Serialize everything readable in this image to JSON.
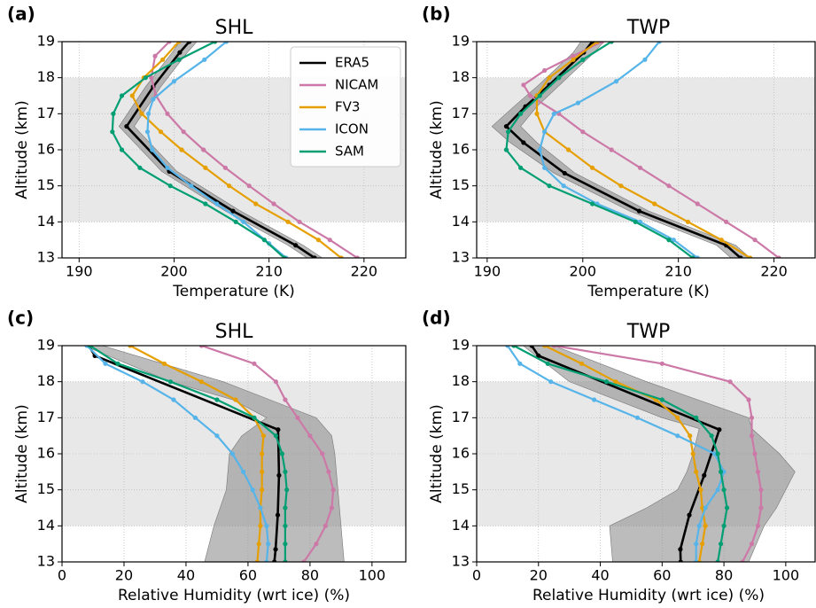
{
  "chart_data": [
    {
      "type": "line",
      "label": "(a)",
      "title": "SHL",
      "x_label": "Temperature (K)",
      "y_label": "Altitude (km)",
      "xlim": [
        188.2,
        224.4
      ],
      "xticks": [
        190,
        200,
        210,
        220
      ],
      "ylim": [
        13,
        19
      ],
      "yticks": [
        13,
        14,
        15,
        16,
        17,
        18,
        19
      ],
      "grid": true,
      "span": [
        14,
        18
      ],
      "legend": "upper right",
      "band": {
        "color": "#8c8c8c",
        "y": [
          13,
          13.35,
          14.3,
          15.4,
          16.65,
          17.75,
          18.7,
          19
        ],
        "lower": [
          214,
          212,
          205.4,
          198.7,
          194.2,
          197,
          199.8,
          200.6
        ],
        "upper": [
          215.6,
          213.6,
          207,
          200.3,
          195.8,
          198.6,
          201.4,
          202.4
        ]
      },
      "series": [
        {
          "name": "ERA5",
          "color": "#000000",
          "y": [
            13,
            13.35,
            14.3,
            15.4,
            16.65,
            17.75,
            18.7,
            19
          ],
          "x": [
            214.8,
            212.8,
            206.2,
            199.5,
            195,
            197.8,
            200.6,
            201.6
          ]
        },
        {
          "name": "NICAM",
          "color": "#cc79a7",
          "y": [
            13,
            13.5,
            14,
            14.5,
            15,
            15.5,
            16,
            16.5,
            17,
            17.5,
            18,
            18.6,
            19
          ],
          "x": [
            219.3,
            216.4,
            213.2,
            210.5,
            207.9,
            205.4,
            203.1,
            201,
            199.3,
            198.1,
            197.6,
            198,
            199.5
          ]
        },
        {
          "name": "FV3",
          "color": "#e69f00",
          "y": [
            13,
            13.5,
            14,
            14.5,
            15,
            15.5,
            16,
            16.5,
            17,
            17.5,
            18,
            18.5,
            19
          ],
          "x": [
            217.6,
            215.2,
            212,
            208.6,
            205.8,
            203.3,
            200.8,
            198.6,
            196.6,
            195.6,
            196.8,
            198.8,
            200.5
          ]
        },
        {
          "name": "ICON",
          "color": "#56b4e9",
          "y": [
            13,
            13.4,
            14,
            14.5,
            15,
            15.5,
            16,
            16.5,
            17,
            17.4,
            17.9,
            18.5,
            19
          ],
          "x": [
            211.8,
            210,
            207.3,
            204.5,
            201.8,
            199.3,
            197.7,
            197.2,
            197.3,
            197.8,
            200,
            203.2,
            205.5
          ]
        },
        {
          "name": "SAM",
          "color": "#009e73",
          "y": [
            13,
            13.5,
            14,
            14.5,
            15,
            15.5,
            16,
            16.5,
            17,
            17.5,
            18,
            18.5,
            19
          ],
          "x": [
            211.6,
            209.5,
            206.5,
            203.3,
            199.6,
            196.4,
            194.5,
            193.5,
            193.6,
            194.5,
            197,
            200.5,
            204.3
          ]
        }
      ]
    },
    {
      "type": "line",
      "label": "(b)",
      "title": "TWP",
      "x_label": "Temperature (K)",
      "y_label": "Altitude (km)",
      "xlim": [
        188.9,
        224.3
      ],
      "xticks": [
        190,
        200,
        210,
        220
      ],
      "ylim": [
        13,
        19
      ],
      "yticks": [
        13,
        14,
        15,
        16,
        17,
        18,
        19
      ],
      "grid": true,
      "span": [
        14,
        18
      ],
      "band": {
        "color": "#8c8c8c",
        "y": [
          13,
          13.35,
          14.3,
          15.35,
          16.2,
          16.65,
          17.2,
          17.8,
          18.7,
          19
        ],
        "lower": [
          215.5,
          214,
          204.9,
          197,
          192.4,
          190.5,
          192.8,
          195.4,
          199,
          199.8
        ],
        "upper": [
          217.5,
          216,
          206.9,
          199.2,
          195.2,
          193.5,
          195.2,
          197.6,
          201.2,
          202.2
        ]
      },
      "series": [
        {
          "name": "ERA5",
          "color": "#000000",
          "y": [
            13,
            13.35,
            14.3,
            15.35,
            16.2,
            16.65,
            17.2,
            17.8,
            18.7,
            19
          ],
          "x": [
            216.5,
            215,
            205.9,
            198.1,
            193.8,
            192,
            194,
            196.5,
            200.1,
            201
          ]
        },
        {
          "name": "NICAM",
          "color": "#cc79a7",
          "y": [
            13,
            13.5,
            14,
            14.5,
            15,
            15.5,
            16,
            16.5,
            17,
            17.5,
            17.8,
            18.2,
            18.6,
            19
          ],
          "x": [
            220.5,
            218,
            215,
            212,
            209,
            206,
            203,
            200,
            197.5,
            194.5,
            193.8,
            196,
            199,
            202
          ]
        },
        {
          "name": "FV3",
          "color": "#e69f00",
          "y": [
            13,
            13.5,
            14,
            14.5,
            15,
            15.5,
            16,
            16.5,
            17,
            17.5,
            18,
            18.5,
            19
          ],
          "x": [
            217.5,
            214.5,
            211,
            207.5,
            204,
            201,
            198.5,
            196,
            195.2,
            195.2,
            196.5,
            199,
            201.5
          ]
        },
        {
          "name": "ICON",
          "color": "#56b4e9",
          "y": [
            13,
            13.5,
            14,
            14.5,
            15,
            15.5,
            16,
            16.5,
            17,
            17.3,
            17.9,
            18.5,
            19
          ],
          "x": [
            212,
            209.5,
            206,
            201.5,
            198,
            196,
            195.5,
            196,
            197,
            199.5,
            203.5,
            206.5,
            208
          ]
        },
        {
          "name": "SAM",
          "color": "#009e73",
          "y": [
            13,
            13.5,
            14,
            14.5,
            15,
            15.5,
            16,
            16.5,
            17,
            17.5,
            18,
            18.5,
            19
          ],
          "x": [
            211.5,
            209,
            205.5,
            201,
            196.5,
            193.5,
            192,
            192.2,
            193.5,
            195.5,
            197.5,
            200,
            203
          ]
        }
      ]
    },
    {
      "type": "line",
      "label": "(c)",
      "title": "SHL",
      "x_label": "Relative Humidity (wrt ice) (%)",
      "y_label": "Altitude (km)",
      "xlim": [
        0,
        110.9
      ],
      "xticks": [
        0,
        20,
        40,
        60,
        80,
        100
      ],
      "ylim": [
        13,
        19
      ],
      "yticks": [
        13,
        14,
        15,
        16,
        17,
        18,
        19
      ],
      "grid": true,
      "span": [
        14,
        18
      ],
      "band": {
        "color": "#8f8f8f",
        "y": [
          13,
          14,
          15,
          16,
          16.5,
          17,
          17.5,
          18,
          19
        ],
        "lower": [
          46,
          49,
          53,
          54,
          58,
          66,
          55,
          35,
          7
        ],
        "upper": [
          91,
          90,
          89,
          88,
          87,
          82,
          67,
          52,
          13
        ]
      },
      "series": [
        {
          "name": "ERA5",
          "color": "#000000",
          "y": [
            13,
            13.35,
            14.3,
            15.4,
            16.67,
            18.72,
            19
          ],
          "x": [
            68.5,
            68.9,
            69.6,
            70,
            69.7,
            10.6,
            8.6
          ]
        },
        {
          "name": "NICAM",
          "color": "#cc79a7",
          "y": [
            13,
            13.5,
            14,
            14.5,
            15,
            15.5,
            16,
            16.5,
            17,
            17.5,
            18,
            18.5,
            19
          ],
          "x": [
            78,
            82,
            85,
            87,
            87.5,
            86,
            84,
            80,
            76,
            72,
            69,
            62,
            45
          ]
        },
        {
          "name": "FV3",
          "color": "#e69f00",
          "y": [
            13,
            13.5,
            14,
            14.5,
            15,
            15.5,
            16,
            16.5,
            17,
            17.5,
            18,
            18.5,
            19
          ],
          "x": [
            63,
            63.5,
            64,
            64,
            64.5,
            64.5,
            64.5,
            65,
            62,
            56,
            45,
            33,
            22
          ]
        },
        {
          "name": "ICON",
          "color": "#56b4e9",
          "y": [
            13,
            13.5,
            14,
            14.5,
            15,
            15.5,
            16,
            16.5,
            17,
            17.5,
            18,
            18.5,
            19
          ],
          "x": [
            66,
            66.5,
            66,
            64,
            61.5,
            58.5,
            55,
            50,
            43,
            36,
            26,
            14,
            8
          ]
        },
        {
          "name": "SAM",
          "color": "#009e73",
          "y": [
            13,
            13.5,
            14,
            14.5,
            15,
            15.5,
            16,
            16.5,
            17,
            17.5,
            18,
            18.5,
            19
          ],
          "x": [
            72,
            72,
            72,
            72,
            72.5,
            72,
            71,
            69,
            62,
            50,
            35,
            18,
            9
          ]
        }
      ]
    },
    {
      "type": "line",
      "label": "(d)",
      "title": "TWP",
      "x_label": "Relative Humidity (wrt ice) (%)",
      "y_label": "Altitude (km)",
      "xlim": [
        0,
        109.5
      ],
      "xticks": [
        0,
        20,
        40,
        60,
        80,
        100
      ],
      "ylim": [
        13,
        19
      ],
      "yticks": [
        13,
        14,
        15,
        16,
        17,
        18,
        19
      ],
      "grid": true,
      "span": [
        14,
        18
      ],
      "band": {
        "color": "#8f8f8f",
        "y": [
          13,
          14,
          14.5,
          15,
          15.5,
          16,
          16.7,
          17,
          18,
          19
        ],
        "lower": [
          44,
          43,
          55,
          65,
          68,
          70,
          72,
          60,
          30,
          15
        ],
        "upper": [
          88,
          93,
          97,
          100,
          103,
          98,
          89,
          88,
          55,
          25
        ]
      },
      "series": [
        {
          "name": "ERA5",
          "color": "#000000",
          "y": [
            13,
            13.35,
            14.3,
            15.4,
            16.67,
            18.72,
            19
          ],
          "x": [
            66,
            65.9,
            68.8,
            73.6,
            78.5,
            20,
            17.8
          ]
        },
        {
          "name": "NICAM",
          "color": "#cc79a7",
          "y": [
            13,
            13.5,
            14,
            14.5,
            15,
            15.5,
            16,
            16.5,
            17,
            17.5,
            18,
            18.5,
            19
          ],
          "x": [
            86,
            89,
            91,
            92,
            92,
            91,
            90,
            89,
            89,
            88,
            82,
            60,
            25
          ]
        },
        {
          "name": "FV3",
          "color": "#e69f00",
          "y": [
            13,
            13.5,
            14,
            14.5,
            15,
            15.5,
            16,
            16.5,
            17,
            17.5,
            18,
            18.5,
            19
          ],
          "x": [
            72,
            73,
            74,
            73,
            72.5,
            71,
            70,
            69,
            65,
            58,
            45,
            34,
            22
          ]
        },
        {
          "name": "ICON",
          "color": "#56b4e9",
          "y": [
            13,
            13.5,
            14,
            14.5,
            15,
            15.5,
            16,
            16.5,
            17,
            17.5,
            18,
            18.5,
            19
          ],
          "x": [
            71,
            71,
            72,
            74,
            78,
            80,
            77,
            65,
            52,
            38,
            24,
            14,
            10
          ]
        },
        {
          "name": "SAM",
          "color": "#009e73",
          "y": [
            13,
            13.5,
            14,
            14.5,
            15,
            15.5,
            16,
            16.5,
            17,
            17.5,
            18,
            18.5,
            19
          ],
          "x": [
            78,
            79,
            80,
            81,
            80,
            79,
            78,
            76,
            71,
            60,
            42,
            23,
            12
          ]
        }
      ]
    }
  ]
}
